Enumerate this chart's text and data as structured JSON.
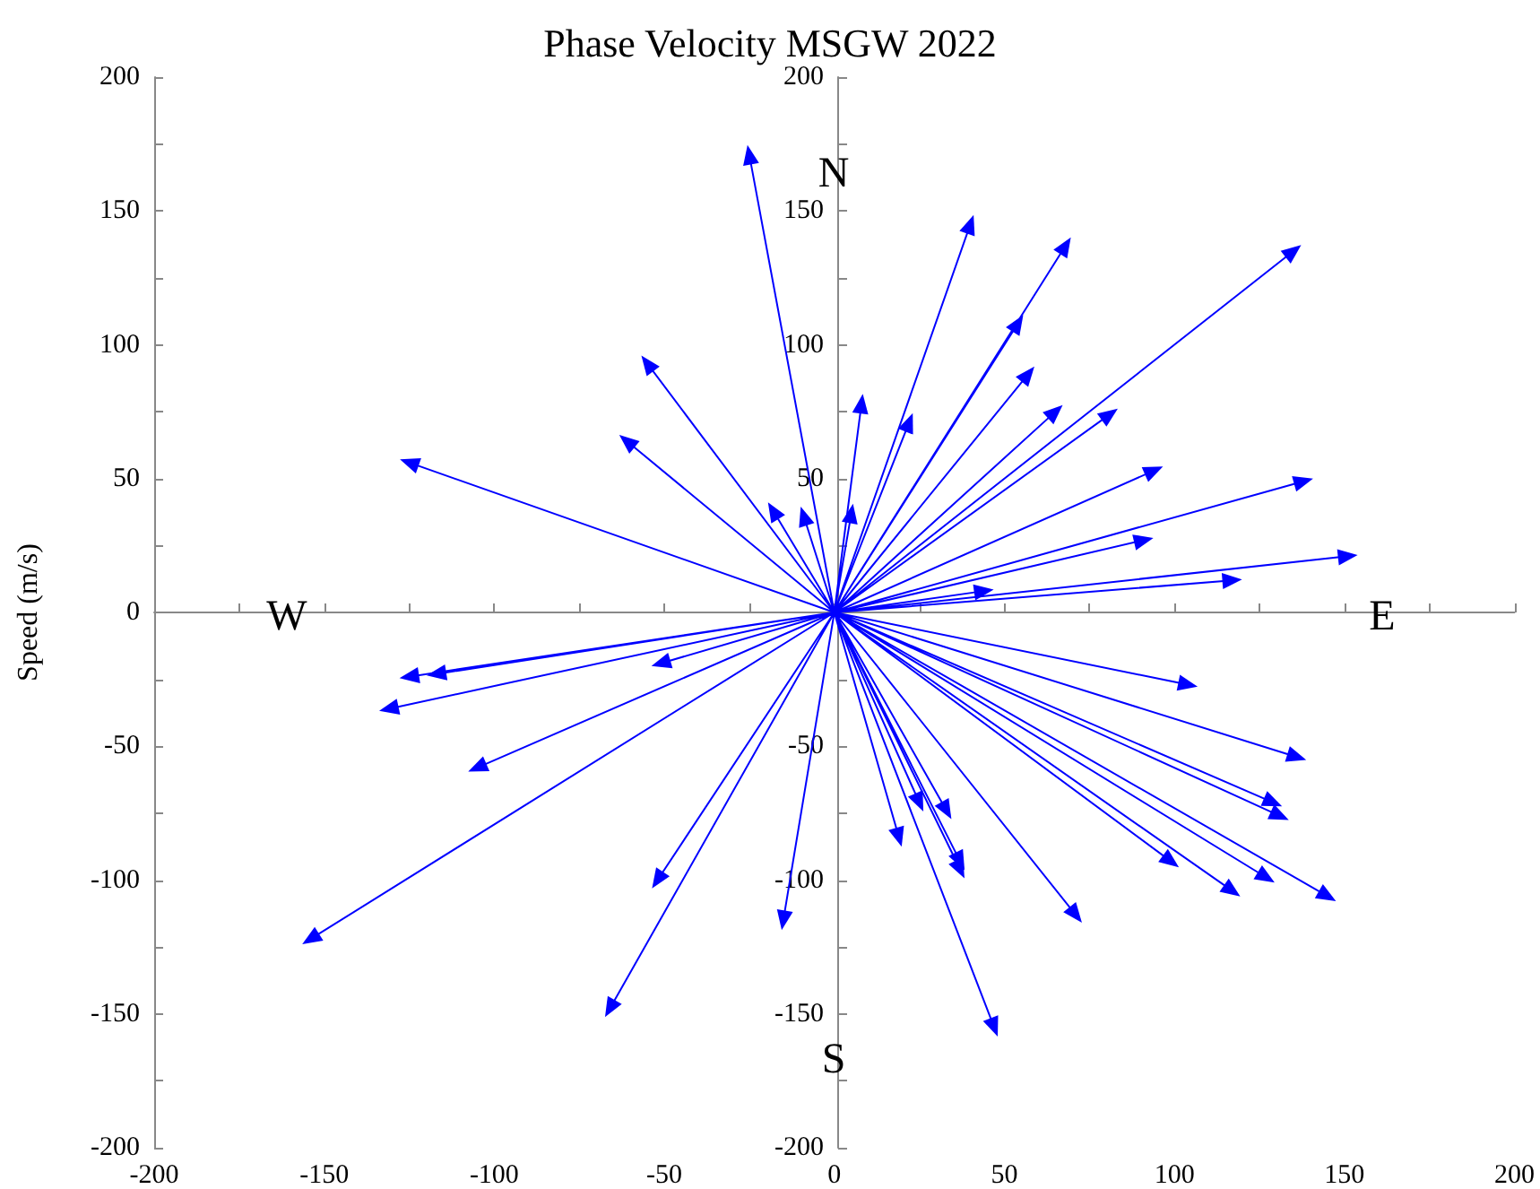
{
  "chart_data": {
    "type": "line",
    "title": "Phase Velocity MSGW 2022",
    "ylabel": "Speed (m/s)",
    "xlim": [
      -200,
      200
    ],
    "xticks": [
      -200,
      -150,
      -100,
      -50,
      0,
      50,
      100,
      150,
      200
    ],
    "ylim": [
      -200,
      200
    ],
    "yticks": [
      -200,
      -150,
      -100,
      -50,
      0,
      50,
      100,
      150,
      200
    ],
    "y2lim": [
      -200,
      200
    ],
    "y2ticks": [
      -200,
      -150,
      -100,
      -50,
      {
        "value": 0,
        "label": null
      },
      50,
      100,
      150,
      200
    ],
    "marker": "triangle",
    "line_style": "solid",
    "annotations": [
      "N",
      "S",
      "E",
      "W"
    ],
    "series": [
      {
        "color": "#0000ff",
        "x": [
          0,
          -25,
          0,
          40,
          0,
          68,
          0,
          54,
          0,
          135,
          0,
          57,
          0,
          65,
          0,
          81,
          0,
          8,
          0,
          22,
          0,
          -55,
          0,
          -61,
          0,
          -125,
          0,
          94,
          0,
          138,
          0,
          -18,
          0,
          -9,
          0,
          5,
          0,
          91,
          0,
          151,
          0,
          117,
          0,
          44,
          0,
          104,
          0,
          136,
          0,
          129,
          0,
          131,
          0,
          99,
          0,
          145,
          0,
          127,
          0,
          117,
          0,
          71,
          0,
          47,
          0,
          37,
          0,
          37,
          0,
          33,
          0,
          25,
          0,
          19,
          0,
          -15,
          0,
          -52,
          0,
          -66,
          0,
          -154,
          0,
          -105,
          0,
          -131,
          0,
          -125,
          0,
          -117,
          0,
          -51
        ],
        "values": [
          0,
          171,
          0,
          145,
          0,
          137,
          0,
          108,
          0,
          135,
          0,
          89,
          0,
          75,
          0,
          74,
          0,
          78,
          0,
          71,
          0,
          93,
          0,
          64,
          0,
          56,
          0,
          53,
          0,
          49,
          0,
          38,
          0,
          36,
          0,
          37,
          0,
          27,
          0,
          21,
          0,
          12,
          0,
          8,
          0,
          -27,
          0,
          -54,
          0,
          -71,
          0,
          -76,
          0,
          -93,
          0,
          -106,
          0,
          -99,
          0,
          -104,
          0,
          -113,
          0,
          -155,
          0,
          -96,
          0,
          -93,
          0,
          -74,
          0,
          -71,
          0,
          -84,
          0,
          -115,
          0,
          -100,
          0,
          -148,
          0,
          -122,
          0,
          -58,
          0,
          -36,
          0,
          -24,
          0,
          -23,
          0,
          -19
        ]
      }
    ]
  }
}
